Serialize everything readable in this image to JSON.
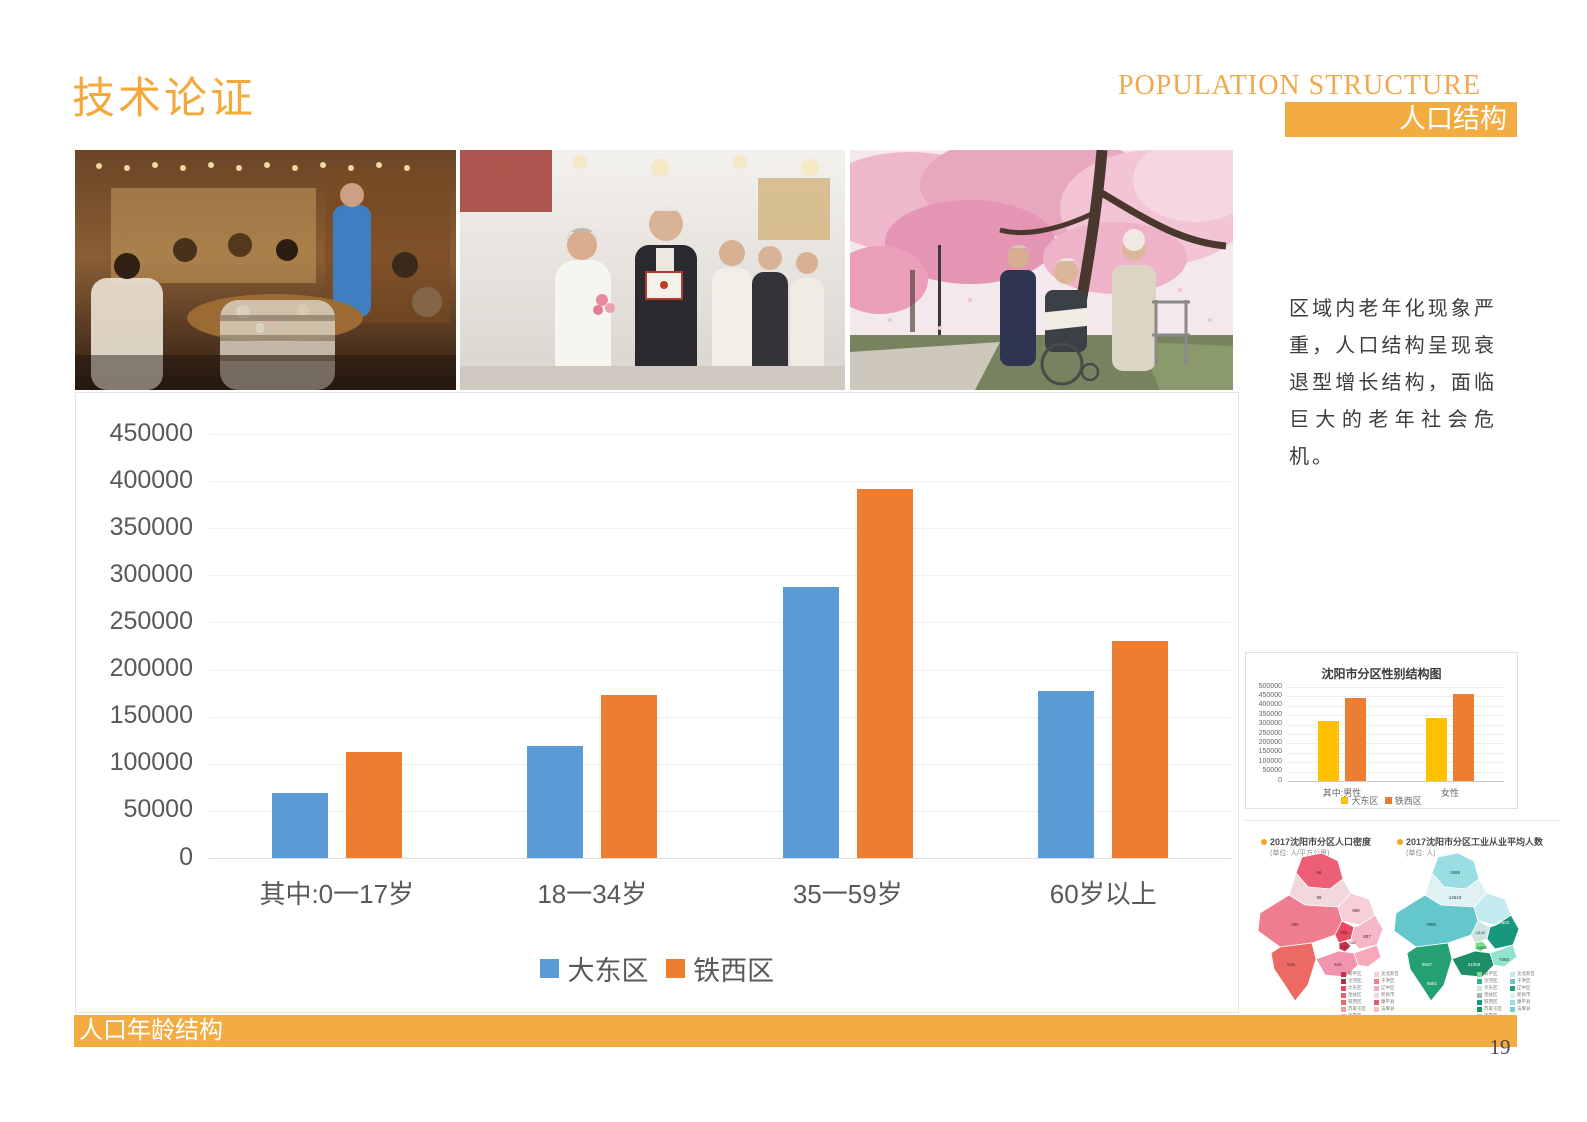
{
  "header": {
    "title_cn": "技术论证",
    "title_en": "POPULATION STRUCTURE",
    "tab_cn": "人口结构",
    "accent_orange": "#F2AC42"
  },
  "sidebar": {
    "paragraph": "区域内老年化现象严重，人口结构呈现衰退型增长结构，面临巨大的老年社会危机。"
  },
  "chart_data": [
    {
      "type": "bar",
      "title": "",
      "categories": [
        "其中:0一17岁",
        "18一34岁",
        "35一59岁",
        "60岁以上"
      ],
      "series": [
        {
          "name": "大东区",
          "color": "#5B9BD5",
          "values": [
            69000,
            119000,
            288000,
            177000
          ]
        },
        {
          "name": "铁西区",
          "color": "#ED7D31",
          "values": [
            112000,
            173000,
            392000,
            230000
          ]
        }
      ],
      "ylim": [
        0,
        450000
      ],
      "ytick": 50000,
      "grid": true,
      "legend_position": "bottom"
    },
    {
      "type": "bar",
      "title": "沈阳市分区性别结构图",
      "categories": [
        "其中:男性",
        "女性"
      ],
      "series": [
        {
          "name": "大东区",
          "color": "#FFC000",
          "values": [
            320000,
            335000
          ]
        },
        {
          "name": "铁西区",
          "color": "#ED7D31",
          "values": [
            442000,
            463000
          ]
        }
      ],
      "ylim": [
        0,
        500000
      ],
      "ytick": 50000,
      "grid": true,
      "legend_position": "bottom"
    }
  ],
  "maps": [
    {
      "title": "2017沈阳市分区人口密度",
      "unit": "(单位: 人/平方公里)",
      "values": [
        "96",
        "98",
        "255",
        "466",
        "996",
        "807",
        "1796",
        "7482",
        "815",
        "544"
      ],
      "legend": [
        {
          "name": "和平区",
          "color": "#C2334E"
        },
        {
          "name": "沈河区",
          "color": "#B33049"
        },
        {
          "name": "大东区",
          "color": "#E94A62"
        },
        {
          "name": "皇姑区",
          "color": "#ED5F76"
        },
        {
          "name": "铁西区",
          "color": "#EC6A63"
        },
        {
          "name": "苏家屯区",
          "color": "#F195AE"
        },
        {
          "name": "浑南区",
          "color": "#F3B7C5"
        },
        {
          "name": "沈北新区",
          "color": "#F7CFD9"
        },
        {
          "name": "于洪区",
          "color": "#EF7D8E"
        },
        {
          "name": "辽中区",
          "color": "#F6A9BB"
        },
        {
          "name": "新民市",
          "color": "#F2D8DC"
        },
        {
          "name": "康平县",
          "color": "#E05C72"
        },
        {
          "name": "法库县",
          "color": "#F5BECB"
        }
      ]
    },
    {
      "title": "2017沈阳市分区工业从业平均人数",
      "unit": "(单位: 人)",
      "values": [
        "1689",
        "14643",
        "7906",
        "11149",
        "25503",
        "7483",
        "44086",
        "21058",
        "9637",
        "5561"
      ],
      "legend": [
        {
          "name": "和平区",
          "color": "#79E08E"
        },
        {
          "name": "沈河区",
          "color": "#2FAF8C"
        },
        {
          "name": "大东区",
          "color": "#CFE4E1"
        },
        {
          "name": "皇姑区",
          "color": "#9FB9B1"
        },
        {
          "name": "铁西区",
          "color": "#18977E"
        },
        {
          "name": "苏家屯区",
          "color": "#1D8E67"
        },
        {
          "name": "浑南区",
          "color": "#93E4CE"
        },
        {
          "name": "沈北新区",
          "color": "#C3EAEE"
        },
        {
          "name": "于洪区",
          "color": "#63C7CB"
        },
        {
          "name": "辽中区",
          "color": "#25A171"
        },
        {
          "name": "新民市",
          "color": "#DFF1F3"
        },
        {
          "name": "康平县",
          "color": "#9ADDE2"
        },
        {
          "name": "法库县",
          "color": "#74D4BA"
        }
      ]
    }
  ],
  "footer": {
    "label": "人口年龄结构",
    "page_number": "19"
  }
}
